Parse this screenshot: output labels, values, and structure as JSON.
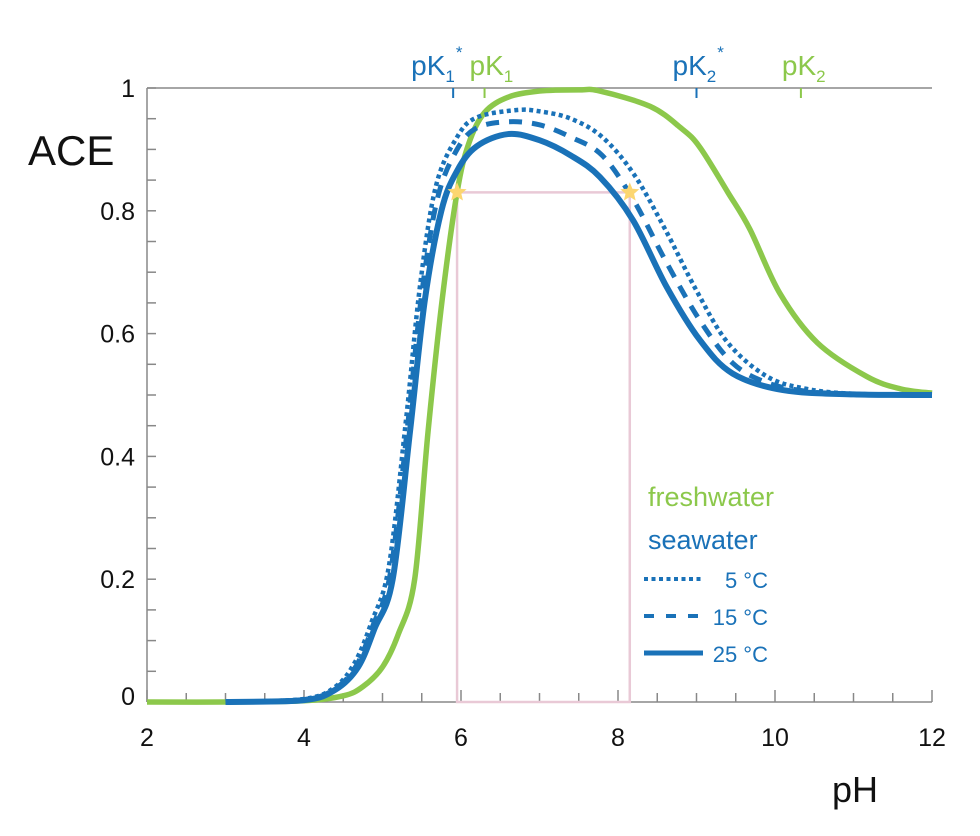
{
  "chart_data": {
    "type": "line",
    "title": "",
    "xlabel": "pH",
    "ylabel": "ACE",
    "xlim": [
      2,
      12
    ],
    "ylim": [
      0,
      1
    ],
    "x_ticks": [
      "2",
      "4",
      "6",
      "8",
      "10",
      "12"
    ],
    "y_ticks": [
      "0",
      "0.2",
      "0.4",
      "0.6",
      "0.8",
      "1"
    ],
    "x_tick_values": [
      2,
      4,
      6,
      8,
      10,
      12
    ],
    "y_tick_values": [
      0,
      0.2,
      0.4,
      0.6,
      0.8,
      1
    ],
    "grid": false,
    "legend_position": "bottom-right",
    "colors": {
      "freshwater": "#8cc84b",
      "seawater": "#1a72b8",
      "highlight_box": "#e9c9d6",
      "star": "#fcd670"
    },
    "legend": {
      "group_freshwater": "freshwater",
      "group_seawater": "seawater",
      "entries": [
        {
          "label": "5 °C",
          "style": "dotted"
        },
        {
          "label": "15 °C",
          "style": "dashed"
        },
        {
          "label": "25 °C",
          "style": "solid"
        }
      ]
    },
    "pk_markers": [
      {
        "label": "pK",
        "sub": "1",
        "sup": "*",
        "ph": 5.9,
        "color": "#1a72b8"
      },
      {
        "label": "pK",
        "sub": "1",
        "sup": "",
        "ph": 6.3,
        "color": "#8cc84b"
      },
      {
        "label": "pK",
        "sub": "2",
        "sup": "*",
        "ph": 9.0,
        "color": "#1a72b8"
      },
      {
        "label": "pK",
        "sub": "2",
        "sup": "",
        "ph": 10.33,
        "color": "#8cc84b"
      }
    ],
    "highlight_box": {
      "ph_range": [
        5.95,
        8.15
      ],
      "ace": 0.83
    },
    "series": [
      {
        "name": "freshwater",
        "style": "solid",
        "color": "#8cc84b",
        "points": [
          [
            2,
            0
          ],
          [
            3,
            0
          ],
          [
            4,
            0.002
          ],
          [
            4.5,
            0.01
          ],
          [
            4.75,
            0.025
          ],
          [
            5,
            0.057
          ],
          [
            5.2,
            0.11
          ],
          [
            5.41,
            0.2
          ],
          [
            5.58,
            0.44
          ],
          [
            5.76,
            0.655
          ],
          [
            5.95,
            0.83
          ],
          [
            6.1,
            0.91
          ],
          [
            6.3,
            0.96
          ],
          [
            6.6,
            0.985
          ],
          [
            7,
            0.995
          ],
          [
            7.5,
            0.997
          ],
          [
            7.77,
            0.995
          ],
          [
            8.41,
            0.97
          ],
          [
            8.8,
            0.935
          ],
          [
            9.04,
            0.904
          ],
          [
            9.4,
            0.83
          ],
          [
            9.68,
            0.77
          ],
          [
            10.06,
            0.666
          ],
          [
            10.54,
            0.585
          ],
          [
            11.17,
            0.53
          ],
          [
            11.6,
            0.51
          ],
          [
            12,
            0.503
          ]
        ]
      },
      {
        "name": "5 °C",
        "style": "dotted",
        "color": "#1a72b8",
        "points": [
          [
            3,
            0
          ],
          [
            4,
            0.005
          ],
          [
            4.4,
            0.025
          ],
          [
            4.65,
            0.065
          ],
          [
            4.86,
            0.13
          ],
          [
            5.08,
            0.22
          ],
          [
            5.3,
            0.46
          ],
          [
            5.48,
            0.68
          ],
          [
            5.68,
            0.84
          ],
          [
            5.95,
            0.92
          ],
          [
            6.2,
            0.952
          ],
          [
            6.7,
            0.964
          ],
          [
            7,
            0.962
          ],
          [
            7.4,
            0.95
          ],
          [
            7.8,
            0.92
          ],
          [
            8.2,
            0.86
          ],
          [
            8.6,
            0.77
          ],
          [
            9,
            0.67
          ],
          [
            9.4,
            0.585
          ],
          [
            9.9,
            0.53
          ],
          [
            10.4,
            0.51
          ],
          [
            11,
            0.502
          ],
          [
            12,
            0.5
          ]
        ]
      },
      {
        "name": "15 °C",
        "style": "dashed",
        "color": "#1a72b8",
        "points": [
          [
            3,
            0
          ],
          [
            4,
            0.004
          ],
          [
            4.4,
            0.022
          ],
          [
            4.67,
            0.06
          ],
          [
            4.88,
            0.125
          ],
          [
            5.1,
            0.21
          ],
          [
            5.32,
            0.45
          ],
          [
            5.5,
            0.665
          ],
          [
            5.7,
            0.82
          ],
          [
            5.95,
            0.9
          ],
          [
            6.2,
            0.935
          ],
          [
            6.6,
            0.945
          ],
          [
            7,
            0.94
          ],
          [
            7.4,
            0.92
          ],
          [
            7.8,
            0.89
          ],
          [
            8.2,
            0.817
          ],
          [
            8.6,
            0.72
          ],
          [
            9.04,
            0.622
          ],
          [
            9.46,
            0.552
          ],
          [
            9.9,
            0.52
          ],
          [
            10.4,
            0.506
          ],
          [
            11,
            0.501
          ],
          [
            12,
            0.5
          ]
        ]
      },
      {
        "name": "25 °C",
        "style": "solid",
        "color": "#1a72b8",
        "points": [
          [
            3,
            0
          ],
          [
            4,
            0.003
          ],
          [
            4.4,
            0.02
          ],
          [
            4.69,
            0.057
          ],
          [
            4.9,
            0.12
          ],
          [
            5.13,
            0.2
          ],
          [
            5.35,
            0.44
          ],
          [
            5.54,
            0.655
          ],
          [
            5.75,
            0.8
          ],
          [
            5.95,
            0.865
          ],
          [
            6.2,
            0.905
          ],
          [
            6.6,
            0.925
          ],
          [
            7,
            0.915
          ],
          [
            7.4,
            0.89
          ],
          [
            7.77,
            0.855
          ],
          [
            8.19,
            0.785
          ],
          [
            8.62,
            0.676
          ],
          [
            9.04,
            0.59
          ],
          [
            9.46,
            0.535
          ],
          [
            10.1,
            0.508
          ],
          [
            11,
            0.501
          ],
          [
            12,
            0.5
          ]
        ]
      }
    ]
  }
}
